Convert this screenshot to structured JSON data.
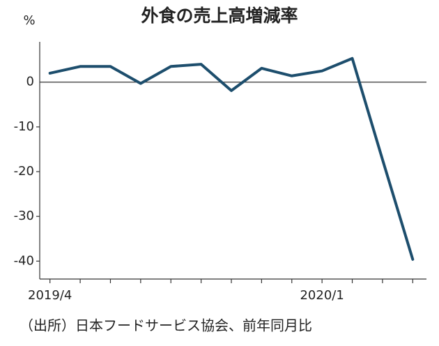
{
  "chart_data": {
    "type": "line",
    "title": "外食の売上高増減率",
    "y_unit": "%",
    "source": "（出所）日本フードサービス協会、前年同月比",
    "categories": [
      "2019/4",
      null,
      null,
      null,
      null,
      null,
      null,
      null,
      null,
      "2020/1",
      null,
      null,
      null
    ],
    "series": [
      {
        "color": "#1d4e6d",
        "values": [
          2.0,
          3.5,
          3.5,
          -0.3,
          3.5,
          4.0,
          -1.9,
          3.1,
          1.4,
          2.5,
          5.3,
          -17.3,
          -39.6
        ]
      }
    ],
    "ylim": [
      -44,
      9
    ],
    "yticks": [
      0,
      -10,
      -20,
      -30,
      -40
    ],
    "grid": false
  }
}
